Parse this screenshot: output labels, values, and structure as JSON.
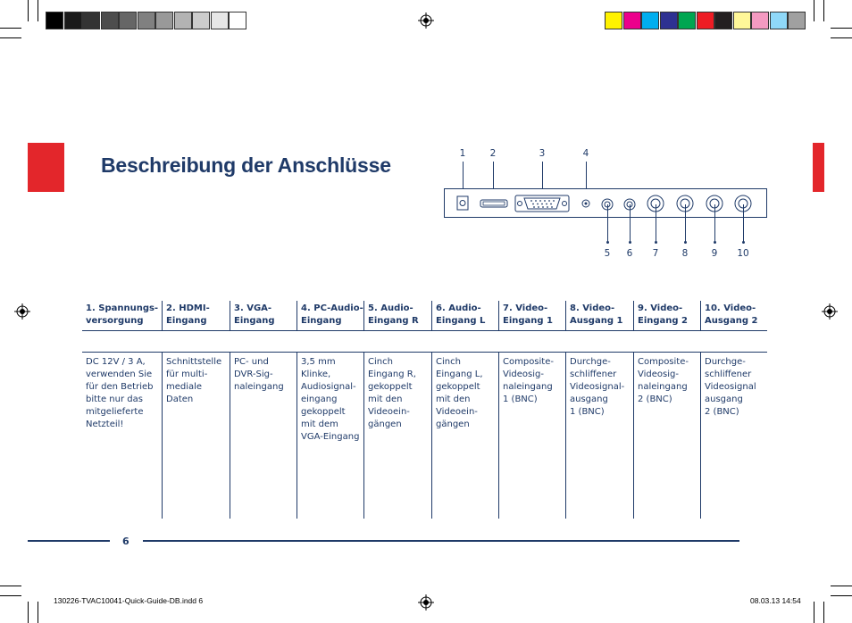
{
  "page": {
    "title": "Beschreibung der Anschlüsse",
    "page_number": "6"
  },
  "colors": {
    "brand_red": "#e3262b",
    "text_blue": "#1f3a68",
    "grey_bar": [
      "#000000",
      "#1a1a1a",
      "#333333",
      "#4d4d4d",
      "#666666",
      "#808080",
      "#999999",
      "#b3b3b3",
      "#cccccc",
      "#e6e6e6",
      "#ffffff"
    ],
    "color_bar": [
      "#fff200",
      "#ec008c",
      "#00aeef",
      "#2e3192",
      "#00a651",
      "#ed1c24",
      "#231f20",
      "#fff799",
      "#f49ac1",
      "#8fd8f8",
      "#a0a0a0"
    ]
  },
  "diagram": {
    "top_labels": [
      "1",
      "2",
      "3",
      "4"
    ],
    "bottom_labels": [
      "5",
      "6",
      "7",
      "8",
      "9",
      "10"
    ]
  },
  "table": {
    "headers": [
      "1. Spannungs-\nversorgung",
      "2. HDMI-\nEingang",
      "3. VGA-\nEingang",
      "4. PC-Audio-\nEingang",
      "5. Audio-\nEingang R",
      "6. Audio-\nEingang L",
      "7. Video-\nEingang 1",
      "8. Video-\nAusgang 1",
      "9. Video-\nEingang 2",
      "10. Video-\nAusgang 2"
    ],
    "cells": [
      "DC 12V / 3 A,\nverwenden Sie\nfür den Betrieb\nbitte nur das\nmitgelieferte\nNetzteil!",
      "Schnittstelle\nfür multi-\nmediale\nDaten",
      "PC- und\nDVR-Sig-\nnaleingang",
      "3,5 mm\nKlinke,\nAudiosignal-\neingang\ngekoppelt\nmit dem\nVGA-Eingang",
      "Cinch\nEingang R,\ngekoppelt\nmit den\nVideoein-\ngängen",
      "Cinch\nEingang L,\ngekoppelt\nmit den\nVideoein-\ngängen",
      "Composite-\nVideosig-\nnaleingang\n1 (BNC)",
      "Durchge-\nschliffener\nVideosignal-\nausgang\n1 (BNC)",
      "Composite-\nVideosig-\nnaleingang\n2 (BNC)",
      "Durchge-\nschliffener\nVideosignal\nausgang\n2 (BNC)"
    ]
  },
  "slug": {
    "filename": "130226-TVAC10041-Quick-Guide-DB.indd   6",
    "datetime": "08.03.13   14:54"
  },
  "icons": [
    "registration-mark-icon",
    "crop-mark-icon"
  ]
}
